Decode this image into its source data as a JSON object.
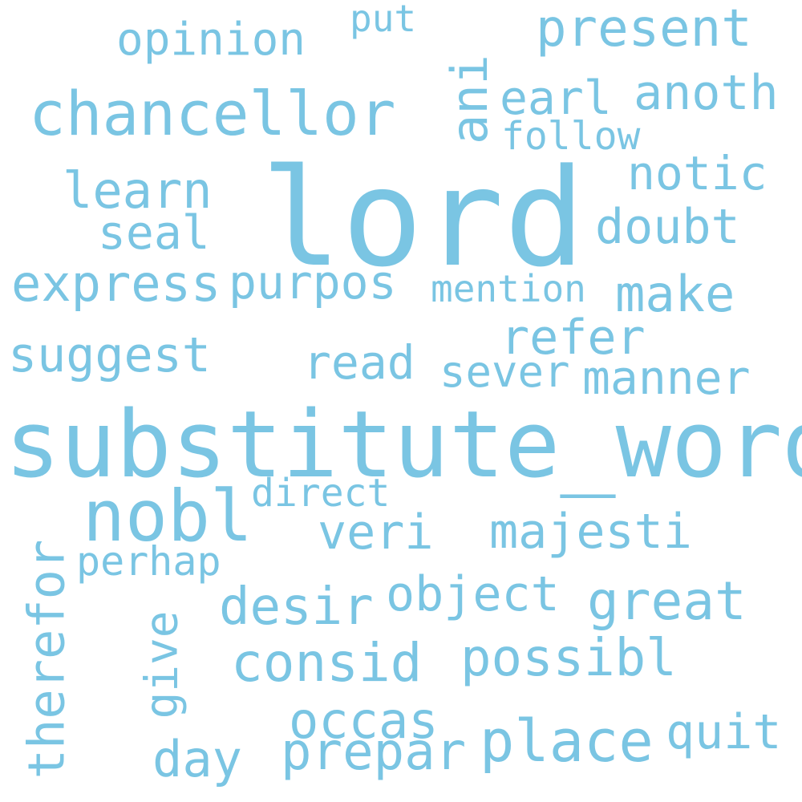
{
  "color": "#7ac5e3",
  "words": {
    "lord": "lord",
    "substitute_word": "substitute_word",
    "nobl": "nobl",
    "chancellor": "chancellor",
    "place": "place",
    "opinion": "opinion",
    "present": "present",
    "earl": "earl",
    "anoth": "anoth",
    "ani": "ani",
    "follow": "follow",
    "put": "put",
    "learn": "learn",
    "seal": "seal",
    "notic": "notic",
    "doubt": "doubt",
    "express": "express",
    "purpos": "purpos",
    "mention": "mention",
    "make": "make",
    "refer": "refer",
    "suggest": "suggest",
    "read": "read",
    "sever": "sever",
    "manner": "manner",
    "direct": "direct",
    "veri": "veri",
    "majesti": "majesti",
    "perhap": "perhap",
    "therefor": "therefor",
    "desir": "desir",
    "object": "object",
    "great": "great",
    "give": "give",
    "consid": "consid",
    "possibl": "possibl",
    "occas": "occas",
    "day": "day",
    "prepar": "prepar",
    "quit": "quit"
  }
}
